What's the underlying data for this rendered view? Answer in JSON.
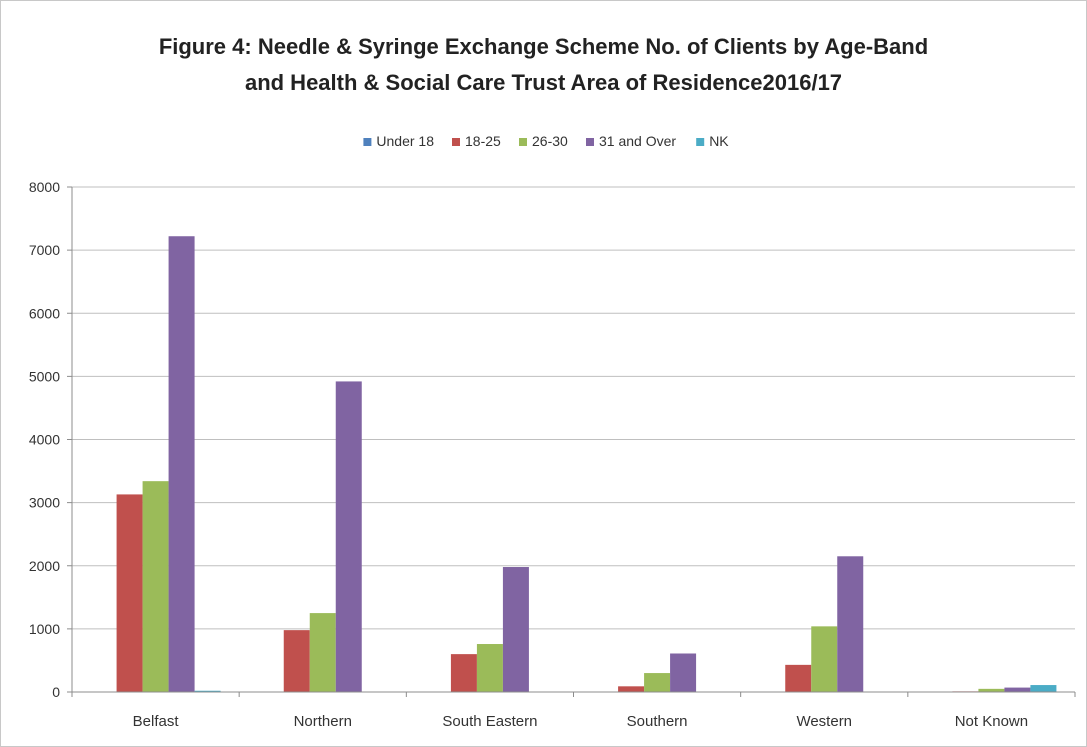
{
  "chart_data": {
    "type": "bar",
    "title_line1": "Figure 4: Needle & Syringe Exchange Scheme No. of Clients by Age-Band",
    "title_line2": "and Health & Social Care Trust Area of Residence2016/17",
    "xlabel": "",
    "ylabel": "",
    "categories": [
      "Belfast",
      "Northern",
      "South Eastern",
      "Southern",
      "Western",
      "Not Known"
    ],
    "ylim": [
      0,
      8000
    ],
    "yticks": [
      "0",
      "1000",
      "2000",
      "3000",
      "4000",
      "5000",
      "6000",
      "7000",
      "8000"
    ],
    "grid": true,
    "legend_position": "top",
    "series": [
      {
        "name": "Under 18",
        "color": "#4f81bd",
        "values": [
          0,
          0,
          0,
          0,
          0,
          0
        ]
      },
      {
        "name": "18-25",
        "color": "#c0504d",
        "values": [
          3130,
          980,
          600,
          90,
          430,
          10
        ]
      },
      {
        "name": "26-30",
        "color": "#9bbb59",
        "values": [
          3340,
          1250,
          760,
          300,
          1040,
          50
        ]
      },
      {
        "name": "31 and Over",
        "color": "#8064a2",
        "values": [
          7220,
          4920,
          1980,
          610,
          2150,
          70
        ]
      },
      {
        "name": "NK",
        "color": "#4bacc6",
        "values": [
          20,
          0,
          0,
          0,
          0,
          110
        ]
      }
    ]
  }
}
